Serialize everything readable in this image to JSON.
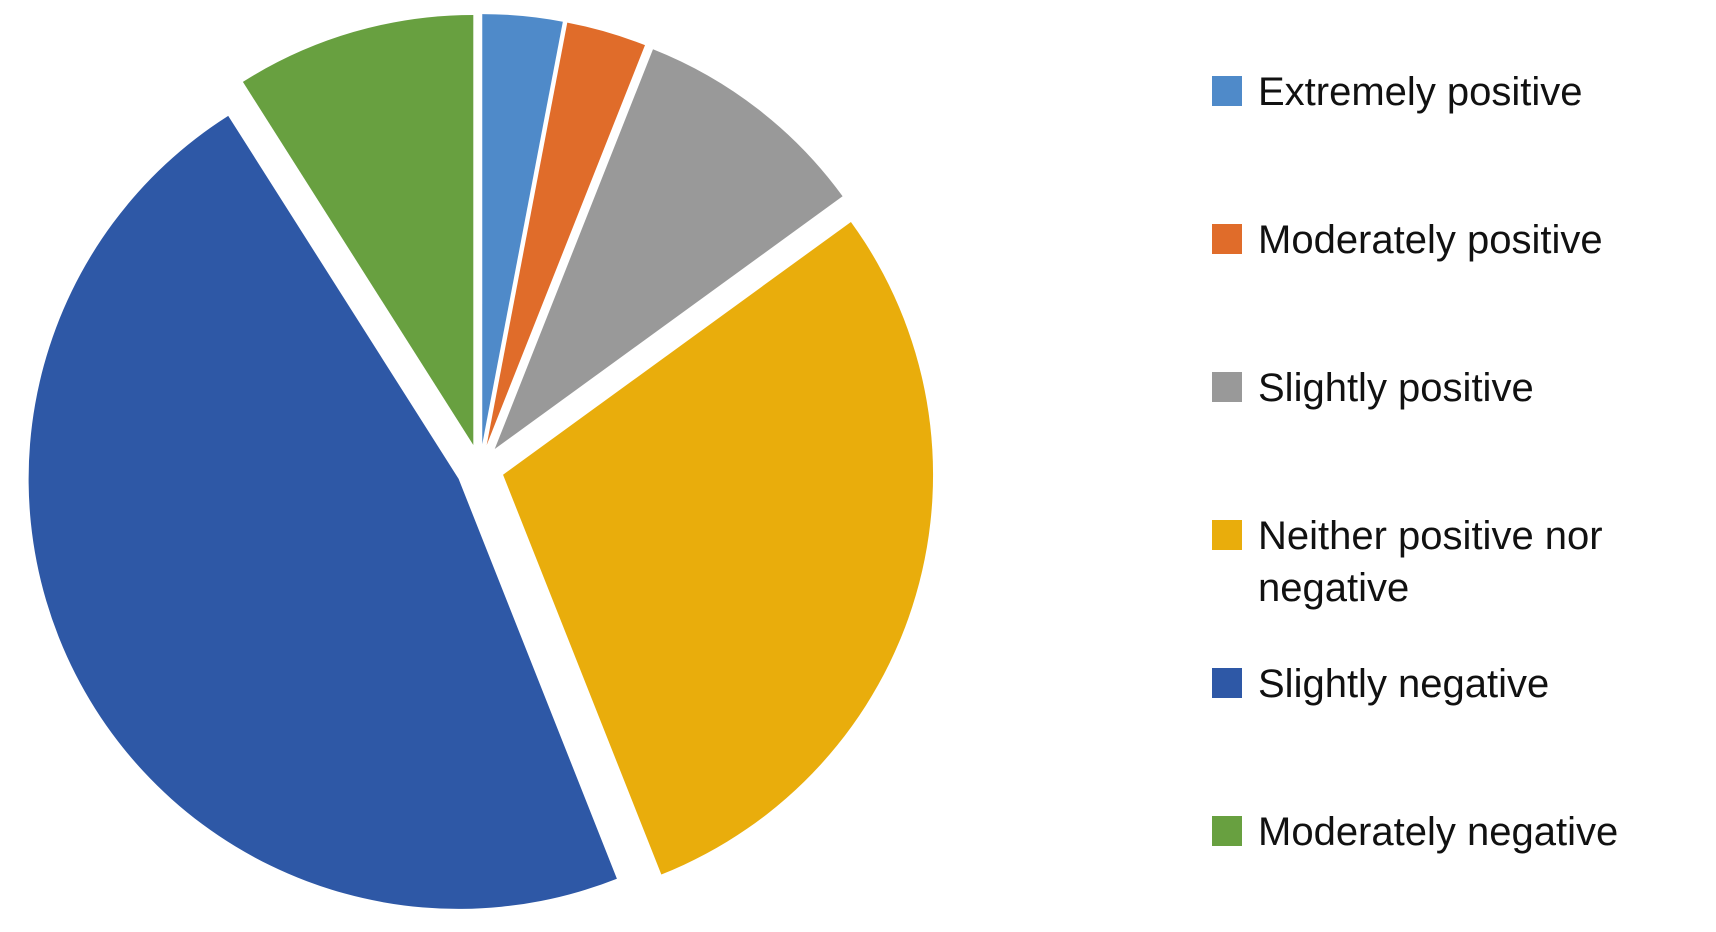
{
  "chart_data": {
    "type": "pie",
    "categories": [
      "Extremely positive",
      "Moderately positive",
      "Slightly positive",
      "Neither positive nor negative",
      "Slightly negative",
      "Moderately negative"
    ],
    "values": [
      3,
      3,
      9,
      29,
      47,
      9
    ],
    "colors": [
      "#4f8ac9",
      "#e06c2a",
      "#999999",
      "#e9ad0c",
      "#2e58a6",
      "#68a040"
    ],
    "legend": "right"
  }
}
